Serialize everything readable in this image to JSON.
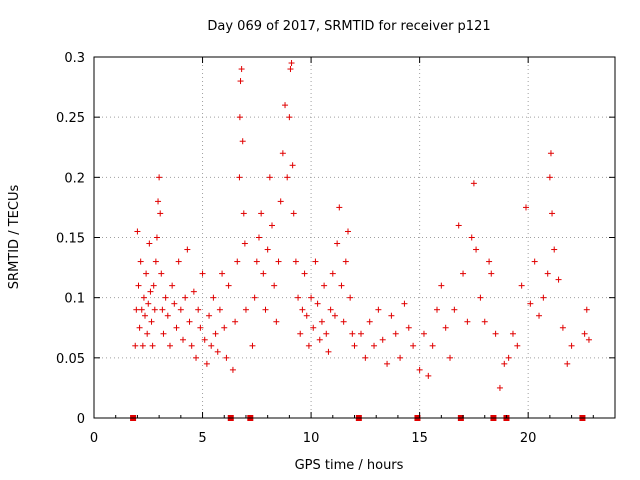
{
  "chart_data": {
    "type": "scatter",
    "title": "Day 069 of 2017, SRMTID for receiver p121",
    "xlabel": "GPS time / hours",
    "ylabel": "SRMTID / TECUs",
    "xlim": [
      0,
      24
    ],
    "ylim": [
      0,
      0.3
    ],
    "x_ticks": [
      0,
      5,
      10,
      15,
      20
    ],
    "y_ticks": [
      0,
      0.05,
      0.1,
      0.15,
      0.2,
      0.25,
      0.3
    ],
    "x_tick_labels": [
      "0",
      "5",
      "10",
      "15",
      "20"
    ],
    "y_tick_labels": [
      "0",
      "0.05",
      "0.1",
      "0.15",
      "0.2",
      "0.25",
      "0.3"
    ],
    "grid": true,
    "marker": "plus",
    "color": "#e00000",
    "gap_markers_x": [
      1.8,
      6.3,
      7.2,
      12.2,
      14.9,
      16.9,
      18.4,
      19.0,
      22.5
    ],
    "series": [
      {
        "name": "SRMTID",
        "points": [
          [
            1.9,
            0.06
          ],
          [
            1.95,
            0.09
          ],
          [
            2.0,
            0.155
          ],
          [
            2.05,
            0.11
          ],
          [
            2.1,
            0.075
          ],
          [
            2.15,
            0.13
          ],
          [
            2.2,
            0.09
          ],
          [
            2.25,
            0.06
          ],
          [
            2.3,
            0.1
          ],
          [
            2.35,
            0.085
          ],
          [
            2.4,
            0.12
          ],
          [
            2.45,
            0.07
          ],
          [
            2.5,
            0.095
          ],
          [
            2.55,
            0.145
          ],
          [
            2.6,
            0.105
          ],
          [
            2.65,
            0.08
          ],
          [
            2.7,
            0.06
          ],
          [
            2.75,
            0.11
          ],
          [
            2.8,
            0.09
          ],
          [
            2.85,
            0.13
          ],
          [
            2.9,
            0.15
          ],
          [
            2.95,
            0.18
          ],
          [
            3.0,
            0.2
          ],
          [
            3.05,
            0.17
          ],
          [
            3.1,
            0.12
          ],
          [
            3.15,
            0.09
          ],
          [
            3.2,
            0.07
          ],
          [
            3.3,
            0.1
          ],
          [
            3.4,
            0.085
          ],
          [
            3.5,
            0.06
          ],
          [
            3.6,
            0.11
          ],
          [
            3.7,
            0.095
          ],
          [
            3.8,
            0.075
          ],
          [
            3.9,
            0.13
          ],
          [
            4.0,
            0.09
          ],
          [
            4.1,
            0.065
          ],
          [
            4.2,
            0.1
          ],
          [
            4.3,
            0.14
          ],
          [
            4.4,
            0.08
          ],
          [
            4.5,
            0.06
          ],
          [
            4.6,
            0.105
          ],
          [
            4.7,
            0.05
          ],
          [
            4.8,
            0.09
          ],
          [
            4.9,
            0.075
          ],
          [
            5.0,
            0.12
          ],
          [
            5.1,
            0.065
          ],
          [
            5.2,
            0.045
          ],
          [
            5.3,
            0.085
          ],
          [
            5.4,
            0.06
          ],
          [
            5.5,
            0.1
          ],
          [
            5.6,
            0.07
          ],
          [
            5.7,
            0.055
          ],
          [
            5.8,
            0.09
          ],
          [
            5.9,
            0.12
          ],
          [
            6.0,
            0.075
          ],
          [
            6.1,
            0.05
          ],
          [
            6.2,
            0.11
          ],
          [
            6.4,
            0.04
          ],
          [
            6.5,
            0.08
          ],
          [
            6.6,
            0.13
          ],
          [
            6.7,
            0.2
          ],
          [
            6.72,
            0.25
          ],
          [
            6.75,
            0.28
          ],
          [
            6.8,
            0.29
          ],
          [
            6.85,
            0.23
          ],
          [
            6.9,
            0.17
          ],
          [
            6.95,
            0.145
          ],
          [
            7.0,
            0.09
          ],
          [
            7.3,
            0.06
          ],
          [
            7.4,
            0.1
          ],
          [
            7.5,
            0.13
          ],
          [
            7.6,
            0.15
          ],
          [
            7.7,
            0.17
          ],
          [
            7.8,
            0.12
          ],
          [
            7.9,
            0.09
          ],
          [
            8.0,
            0.14
          ],
          [
            8.1,
            0.2
          ],
          [
            8.2,
            0.16
          ],
          [
            8.3,
            0.11
          ],
          [
            8.4,
            0.08
          ],
          [
            8.5,
            0.13
          ],
          [
            8.6,
            0.18
          ],
          [
            8.7,
            0.22
          ],
          [
            8.8,
            0.26
          ],
          [
            8.9,
            0.2
          ],
          [
            9.0,
            0.25
          ],
          [
            9.05,
            0.29
          ],
          [
            9.1,
            0.295
          ],
          [
            9.15,
            0.21
          ],
          [
            9.2,
            0.17
          ],
          [
            9.3,
            0.13
          ],
          [
            9.4,
            0.1
          ],
          [
            9.5,
            0.07
          ],
          [
            9.6,
            0.09
          ],
          [
            9.7,
            0.12
          ],
          [
            9.8,
            0.085
          ],
          [
            9.9,
            0.06
          ],
          [
            10.0,
            0.1
          ],
          [
            10.1,
            0.075
          ],
          [
            10.2,
            0.13
          ],
          [
            10.3,
            0.095
          ],
          [
            10.4,
            0.065
          ],
          [
            10.5,
            0.08
          ],
          [
            10.6,
            0.11
          ],
          [
            10.7,
            0.07
          ],
          [
            10.8,
            0.055
          ],
          [
            10.9,
            0.09
          ],
          [
            11.0,
            0.12
          ],
          [
            11.1,
            0.085
          ],
          [
            11.2,
            0.145
          ],
          [
            11.3,
            0.175
          ],
          [
            11.4,
            0.11
          ],
          [
            11.5,
            0.08
          ],
          [
            11.6,
            0.13
          ],
          [
            11.7,
            0.155
          ],
          [
            11.8,
            0.1
          ],
          [
            11.9,
            0.07
          ],
          [
            12.0,
            0.06
          ],
          [
            12.3,
            0.07
          ],
          [
            12.5,
            0.05
          ],
          [
            12.7,
            0.08
          ],
          [
            12.9,
            0.06
          ],
          [
            13.1,
            0.09
          ],
          [
            13.3,
            0.065
          ],
          [
            13.5,
            0.045
          ],
          [
            13.7,
            0.085
          ],
          [
            13.9,
            0.07
          ],
          [
            14.1,
            0.05
          ],
          [
            14.3,
            0.095
          ],
          [
            14.5,
            0.075
          ],
          [
            14.7,
            0.06
          ],
          [
            15.0,
            0.04
          ],
          [
            15.2,
            0.07
          ],
          [
            15.4,
            0.035
          ],
          [
            15.6,
            0.06
          ],
          [
            15.8,
            0.09
          ],
          [
            16.0,
            0.11
          ],
          [
            16.2,
            0.075
          ],
          [
            16.4,
            0.05
          ],
          [
            16.6,
            0.09
          ],
          [
            16.8,
            0.16
          ],
          [
            17.0,
            0.12
          ],
          [
            17.2,
            0.08
          ],
          [
            17.4,
            0.15
          ],
          [
            17.5,
            0.195
          ],
          [
            17.6,
            0.14
          ],
          [
            17.8,
            0.1
          ],
          [
            18.0,
            0.08
          ],
          [
            18.2,
            0.13
          ],
          [
            18.3,
            0.12
          ],
          [
            18.5,
            0.07
          ],
          [
            18.7,
            0.025
          ],
          [
            18.9,
            0.045
          ],
          [
            19.1,
            0.05
          ],
          [
            19.3,
            0.07
          ],
          [
            19.5,
            0.06
          ],
          [
            19.7,
            0.11
          ],
          [
            19.9,
            0.175
          ],
          [
            20.1,
            0.095
          ],
          [
            20.3,
            0.13
          ],
          [
            20.5,
            0.085
          ],
          [
            20.7,
            0.1
          ],
          [
            20.9,
            0.12
          ],
          [
            21.0,
            0.2
          ],
          [
            21.05,
            0.22
          ],
          [
            21.1,
            0.17
          ],
          [
            21.2,
            0.14
          ],
          [
            21.4,
            0.115
          ],
          [
            21.6,
            0.075
          ],
          [
            21.8,
            0.045
          ],
          [
            22.0,
            0.06
          ],
          [
            22.6,
            0.07
          ],
          [
            22.7,
            0.09
          ],
          [
            22.8,
            0.065
          ]
        ]
      }
    ]
  }
}
